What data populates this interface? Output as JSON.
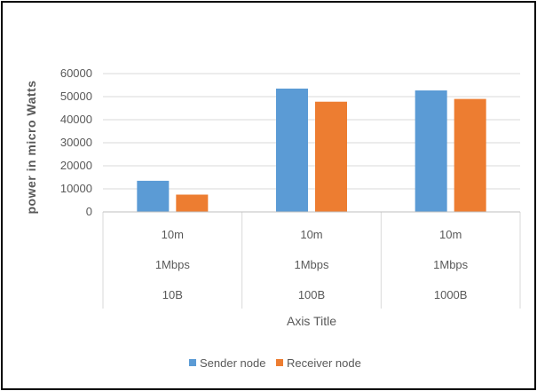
{
  "chart_data": {
    "type": "bar",
    "ylabel": "power in micro Watts",
    "xlabel": "Axis Title",
    "ylim": [
      0,
      60000
    ],
    "yticks": [
      0,
      10000,
      20000,
      30000,
      40000,
      50000,
      60000
    ],
    "grid": true,
    "legend_position": "bottom",
    "categories": [
      [
        "10m",
        "1Mbps",
        "10B"
      ],
      [
        "10m",
        "1Mbps",
        "100B"
      ],
      [
        "10m",
        "1Mbps",
        "1000B"
      ]
    ],
    "series": [
      {
        "name": "Sender node",
        "color": "#5B9BD5",
        "values": [
          13500,
          53500,
          52700
        ]
      },
      {
        "name": "Receiver node",
        "color": "#ED7D31",
        "values": [
          7500,
          47800,
          49000
        ]
      }
    ]
  }
}
